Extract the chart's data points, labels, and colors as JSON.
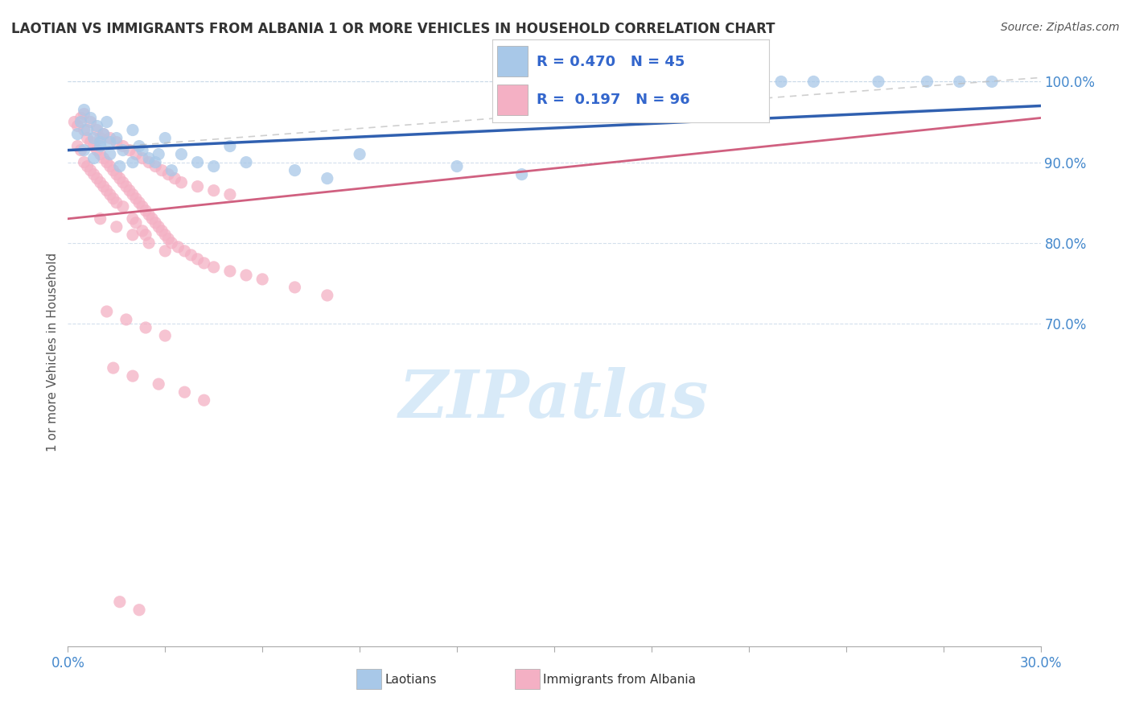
{
  "title": "LAOTIAN VS IMMIGRANTS FROM ALBANIA 1 OR MORE VEHICLES IN HOUSEHOLD CORRELATION CHART",
  "source": "Source: ZipAtlas.com",
  "ylabel_label": "1 or more Vehicles in Household",
  "legend_laotian": "Laotians",
  "legend_albania": "Immigrants from Albania",
  "xmin": 0.0,
  "xmax": 30.0,
  "ymin": 30.0,
  "ymax": 103.0,
  "yticks": [
    70.0,
    80.0,
    90.0,
    100.0
  ],
  "xtick_labels_show": [
    "0.0%",
    "30.0%"
  ],
  "R_laotian": 0.47,
  "N_laotian": 45,
  "R_albania": 0.197,
  "N_albania": 96,
  "color_laotian": "#a8c8e8",
  "color_albania": "#f4b0c4",
  "color_laotian_line": "#3060b0",
  "color_albania_line": "#d06080",
  "watermark_color": "#d8eaf8",
  "grid_color": "#c8d8e8",
  "ytick_color": "#4488cc",
  "xtick_color": "#4488cc",
  "laotian_x": [
    0.3,
    0.4,
    0.5,
    0.6,
    0.7,
    0.8,
    0.9,
    1.0,
    1.1,
    1.2,
    1.3,
    1.5,
    1.7,
    2.0,
    2.2,
    2.5,
    2.8,
    3.0,
    3.5,
    4.0,
    4.5,
    5.0,
    5.5,
    7.0,
    8.0,
    9.0,
    12.0,
    14.0,
    19.5,
    20.5,
    22.0,
    23.0,
    25.0,
    26.5,
    27.5,
    28.5,
    0.5,
    0.8,
    1.0,
    1.3,
    1.6,
    2.0,
    2.3,
    2.7,
    3.2
  ],
  "laotian_y": [
    93.5,
    95.0,
    96.5,
    94.0,
    95.5,
    93.0,
    94.5,
    92.0,
    93.5,
    95.0,
    92.5,
    93.0,
    91.5,
    94.0,
    92.0,
    90.5,
    91.0,
    93.0,
    91.0,
    90.0,
    89.5,
    92.0,
    90.0,
    89.0,
    88.0,
    91.0,
    89.5,
    88.5,
    100.0,
    100.0,
    100.0,
    100.0,
    100.0,
    100.0,
    100.0,
    100.0,
    91.5,
    90.5,
    92.5,
    91.0,
    89.5,
    90.0,
    91.5,
    90.0,
    89.0
  ],
  "albania_x": [
    0.2,
    0.3,
    0.3,
    0.4,
    0.4,
    0.5,
    0.5,
    0.6,
    0.6,
    0.7,
    0.7,
    0.8,
    0.8,
    0.9,
    0.9,
    1.0,
    1.0,
    1.0,
    1.1,
    1.1,
    1.2,
    1.2,
    1.3,
    1.3,
    1.4,
    1.4,
    1.5,
    1.5,
    1.6,
    1.7,
    1.7,
    1.8,
    1.9,
    2.0,
    2.0,
    2.1,
    2.1,
    2.2,
    2.3,
    2.3,
    2.4,
    2.4,
    2.5,
    2.6,
    2.7,
    2.8,
    2.9,
    3.0,
    3.1,
    3.2,
    3.4,
    3.6,
    3.8,
    4.0,
    4.2,
    4.5,
    5.0,
    5.5,
    6.0,
    7.0,
    8.0,
    0.5,
    0.7,
    0.9,
    1.1,
    1.3,
    1.5,
    1.7,
    1.9,
    2.1,
    2.3,
    2.5,
    2.7,
    2.9,
    3.1,
    3.3,
    3.5,
    4.0,
    4.5,
    5.0,
    1.0,
    1.5,
    2.0,
    2.5,
    3.0,
    1.2,
    1.8,
    2.4,
    3.0,
    1.4,
    2.0,
    2.8,
    3.6,
    4.2,
    1.6,
    2.2
  ],
  "albania_y": [
    95.0,
    94.5,
    92.0,
    95.5,
    91.5,
    94.0,
    90.0,
    93.0,
    89.5,
    92.5,
    89.0,
    92.0,
    88.5,
    91.5,
    88.0,
    91.0,
    87.5,
    93.0,
    90.5,
    87.0,
    90.0,
    86.5,
    89.5,
    86.0,
    89.0,
    85.5,
    88.5,
    85.0,
    88.0,
    87.5,
    84.5,
    87.0,
    86.5,
    86.0,
    83.0,
    85.5,
    82.5,
    85.0,
    84.5,
    81.5,
    84.0,
    81.0,
    83.5,
    83.0,
    82.5,
    82.0,
    81.5,
    81.0,
    80.5,
    80.0,
    79.5,
    79.0,
    78.5,
    78.0,
    77.5,
    77.0,
    76.5,
    76.0,
    75.5,
    74.5,
    73.5,
    96.0,
    95.0,
    94.0,
    93.5,
    93.0,
    92.5,
    92.0,
    91.5,
    91.0,
    90.5,
    90.0,
    89.5,
    89.0,
    88.5,
    88.0,
    87.5,
    87.0,
    86.5,
    86.0,
    83.0,
    82.0,
    81.0,
    80.0,
    79.0,
    71.5,
    70.5,
    69.5,
    68.5,
    64.5,
    63.5,
    62.5,
    61.5,
    60.5,
    35.5,
    34.5
  ]
}
